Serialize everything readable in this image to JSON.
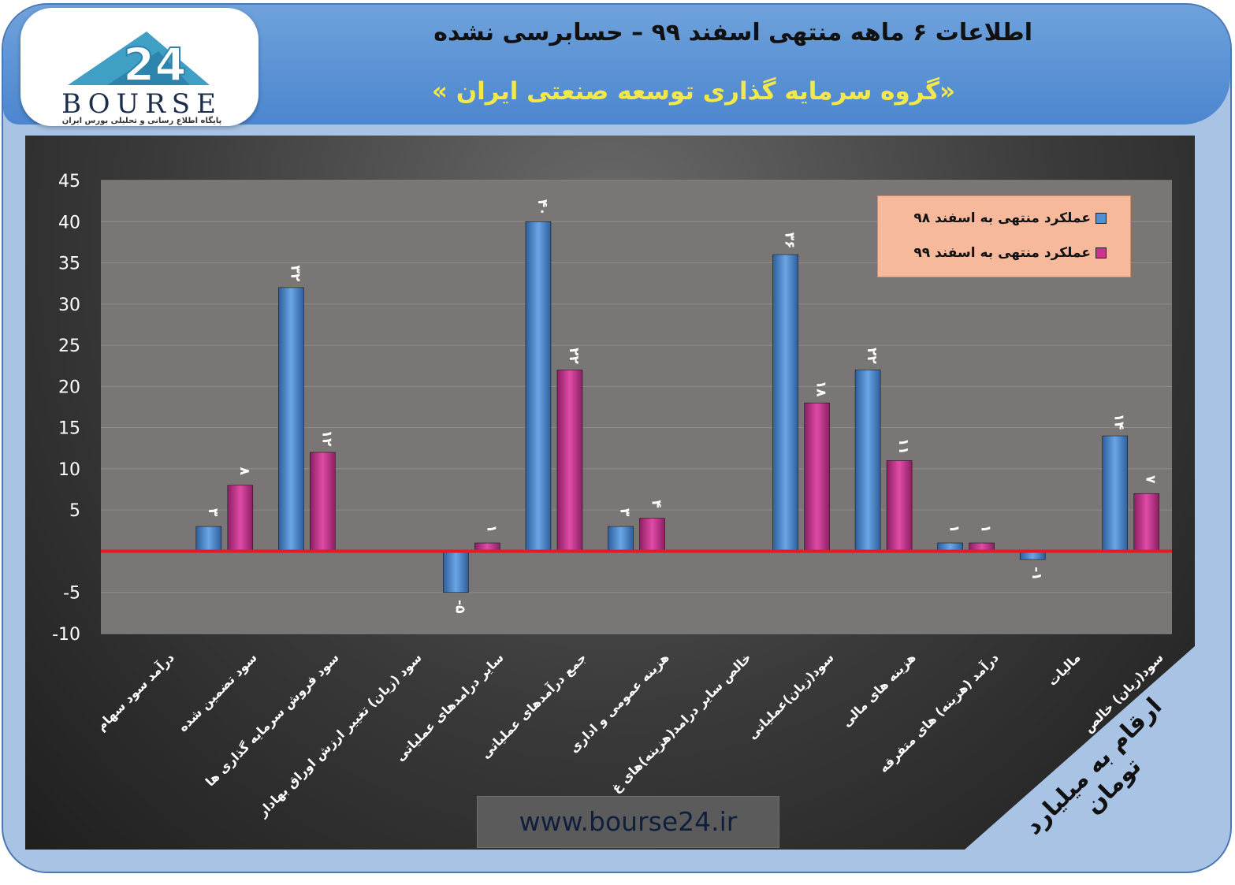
{
  "header": {
    "title_line1": "اطلاعات ۶ ماهه منتهی اسفند ۹۹ – حسابرسی نشده",
    "title_line2": "«گروه سرمایه گذاری توسعه صنعتی ایران »"
  },
  "logo": {
    "word": "BOURSE",
    "subtitle": "پایگاه اطلاع رسانی و تحلیلی بورس ایران"
  },
  "watermark": "www.bourse24.ir",
  "unit_note": "ارقام به میلیارد تومان",
  "colors": {
    "series98": "#4f8fd6",
    "series99": "#c8348f",
    "zero_line": "#e31b23",
    "legend_bg": "#f6b99c",
    "title2": "#f3e84a"
  },
  "chart_data": {
    "type": "bar",
    "ylim": [
      -10,
      45
    ],
    "yticks": [
      "45",
      "40",
      "35",
      "30",
      "25",
      "20",
      "15",
      "10",
      "5",
      "-5",
      "-10"
    ],
    "categories": [
      "درآمد سود سهام",
      "سود تضمین شده",
      "سود فروش سرمایه گذاری ها",
      "سود (زیان) تغییر ارزش اوراق بهادار",
      "سایر درامدهای عملیاتی",
      "جمع درآمدهای عملیاتی",
      "هزینه عمومی و اداری",
      "خالص سایر درامد(هزینه)های غ",
      "سود(زیان)عملیاتی",
      "هزینه های مالی",
      "درآمد (هزینه) های متفرقه",
      "مالیات",
      "سود(زیان) خالص"
    ],
    "series": [
      {
        "name": "عملکرد منتهی به اسفند ۹۸",
        "values": [
          null,
          3,
          32,
          null,
          -5,
          40,
          3,
          null,
          36,
          22,
          1,
          -1,
          14
        ],
        "labels": [
          null,
          "۳",
          "۳۲",
          null,
          "-۵",
          "۴۰",
          "۳",
          null,
          "۳۶",
          "۲۲",
          "۱",
          "-۱",
          "۱۴"
        ]
      },
      {
        "name": "عملکرد منتهی به اسفند ۹۹",
        "values": [
          null,
          8,
          12,
          null,
          1,
          22,
          4,
          null,
          18,
          11,
          1,
          null,
          7
        ],
        "labels": [
          null,
          "۸",
          "۱۲",
          null,
          "۱",
          "۲۲",
          "۴",
          null,
          "۱۸",
          "۱۱",
          "۱",
          null,
          "۷"
        ]
      }
    ],
    "legend_position": "top-right",
    "grid": true
  }
}
